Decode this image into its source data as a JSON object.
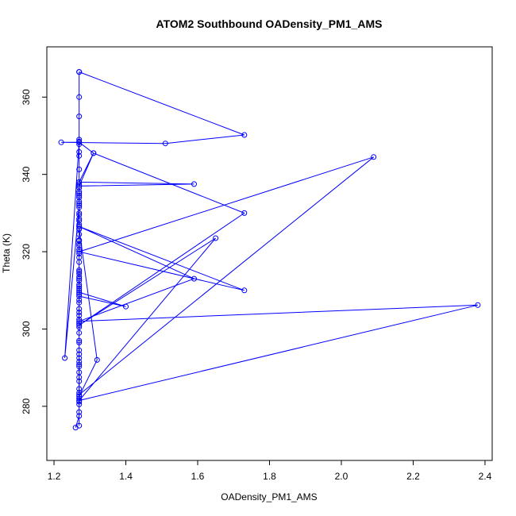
{
  "chart_data": {
    "type": "scatter",
    "title": "ATOM2 Southbound OADensity_PM1_AMS",
    "xlabel": "OADensity_PM1_AMS",
    "ylabel": "Theta (K)",
    "xlim": [
      1.18,
      2.42
    ],
    "ylim": [
      266,
      373
    ],
    "xticks": [
      1.2,
      1.4,
      1.6,
      1.8,
      2.0,
      2.2,
      2.4
    ],
    "xtick_labels": [
      "1.2",
      "1.4",
      "1.6",
      "1.8",
      "2.0",
      "2.2",
      "2.4"
    ],
    "yticks": [
      280,
      300,
      320,
      340,
      360
    ],
    "ytick_labels": [
      "280",
      "300",
      "320",
      "340",
      "360"
    ],
    "grid": false,
    "legend": "none",
    "color": "#0000ff",
    "connect_points": true,
    "series": [
      {
        "x": [
          1.26,
          1.27,
          1.27,
          1.27,
          1.32,
          1.27,
          1.27,
          1.27,
          1.27,
          1.27,
          1.27,
          1.27,
          1.27,
          1.23,
          1.27,
          1.27,
          1.27,
          1.27,
          1.27,
          1.27,
          1.27,
          1.27,
          1.27,
          1.27,
          1.27,
          1.27,
          1.27,
          1.27,
          1.27,
          1.27,
          1.27,
          1.27,
          1.27,
          1.27,
          1.27,
          1.27,
          1.27,
          1.27,
          1.4,
          1.27,
          1.27,
          1.27,
          1.27,
          1.27,
          1.27,
          1.27,
          1.27,
          1.27,
          1.27,
          1.27,
          1.27,
          1.27,
          1.27,
          1.27,
          1.27,
          1.27,
          1.27,
          1.27,
          1.27,
          1.27,
          1.27,
          1.27,
          1.27,
          1.27,
          1.27,
          1.27,
          1.27,
          1.27,
          1.27,
          1.27,
          1.27,
          1.27,
          1.27,
          1.27,
          1.27,
          1.27,
          1.27,
          1.27,
          1.27,
          1.27,
          1.27,
          1.27
        ],
        "y": [
          274.5,
          277.5,
          281.2,
          282.6,
          292.0,
          326.0,
          338.0,
          337.5,
          336.5,
          335.5,
          334.5,
          333.0,
          331.5,
          292.5,
          348.5,
          349.0,
          347.8,
          345.8,
          344.8,
          341.3,
          335.0,
          332.5,
          328.5,
          328.0,
          326.5,
          325.8,
          324.5,
          322.8,
          321.5,
          320.5,
          318.5,
          317.3,
          314.8,
          314.3,
          313.5,
          311.5,
          310.5,
          309.5,
          305.8,
          308.5,
          305.2,
          304.3,
          303.5,
          302.5,
          301.5,
          296.5,
          294.5,
          293.5,
          291.5,
          290.3,
          288.8,
          286.5,
          284.5,
          283.5,
          366.5,
          360.0,
          355.0,
          330.0,
          319.5,
          315.2,
          313.0,
          312.5,
          311.0,
          310.0,
          309.0,
          307.5,
          306.8,
          300.5,
          299.0,
          297.0,
          290.8,
          287.5,
          280.5,
          278.5,
          275.0,
          322.0,
          323.0,
          327.0,
          329.5,
          332.0,
          334.0,
          337.0
        ]
      },
      {
        "x": [
          1.27,
          1.73,
          1.51,
          1.22,
          1.27,
          1.31,
          1.27,
          1.59,
          1.27,
          1.31,
          1.73,
          1.27,
          1.65,
          1.27,
          2.38,
          1.27,
          1.59,
          1.27,
          1.73,
          1.27,
          2.09,
          1.27,
          1.27,
          1.27
        ],
        "y": [
          366.5,
          350.2,
          348.0,
          348.3,
          348.3,
          345.5,
          338.0,
          337.5,
          337.0,
          345.5,
          330.0,
          301.0,
          323.5,
          281.5,
          306.2,
          302.0,
          313.0,
          326.5,
          310.0,
          320.0,
          344.5,
          283.0,
          292.5,
          282.0
        ]
      }
    ]
  }
}
